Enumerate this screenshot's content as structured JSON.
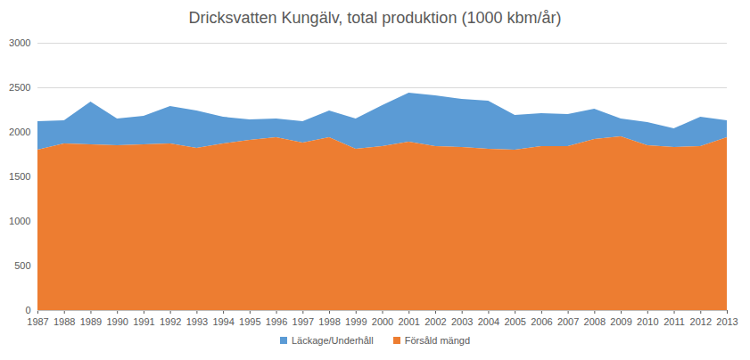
{
  "chart_data": {
    "type": "area",
    "title": "Dricksvatten Kungälv, total produktion (1000 kbm/år)",
    "stacked": true,
    "grid": true,
    "legend": "bottom",
    "x": [
      1987,
      1988,
      1989,
      1990,
      1991,
      1992,
      1993,
      1994,
      1995,
      1996,
      1997,
      1998,
      1999,
      2000,
      2001,
      2002,
      2003,
      2004,
      2005,
      2006,
      2007,
      2008,
      2009,
      2010,
      2011,
      2012,
      2013
    ],
    "xlim": [
      1987,
      2013
    ],
    "xticks": [
      1987,
      1988,
      1989,
      1990,
      1991,
      1992,
      1993,
      1994,
      1995,
      1996,
      1997,
      1998,
      1999,
      2000,
      2001,
      2002,
      2003,
      2004,
      2005,
      2006,
      2007,
      2008,
      2009,
      2010,
      2011,
      2012,
      2013
    ],
    "ylim": [
      0,
      3000
    ],
    "yticks": [
      0,
      500,
      1000,
      1500,
      2000,
      2500,
      3000
    ],
    "series": [
      {
        "name": "Läckage/Underhåll",
        "color": "#5b9bd5",
        "values": [
          320,
          260,
          480,
          300,
          320,
          420,
          420,
          300,
          230,
          210,
          240,
          300,
          340,
          460,
          550,
          570,
          540,
          540,
          390,
          370,
          360,
          340,
          200,
          260,
          210,
          330,
          190
        ]
      },
      {
        "name": "Försåld mängd",
        "color": "#ed7d31",
        "values": [
          1800,
          1870,
          1860,
          1850,
          1860,
          1870,
          1820,
          1870,
          1910,
          1940,
          1880,
          1940,
          1810,
          1840,
          1890,
          1840,
          1830,
          1810,
          1800,
          1840,
          1840,
          1920,
          1950,
          1850,
          1830,
          1840,
          1940
        ]
      }
    ]
  }
}
